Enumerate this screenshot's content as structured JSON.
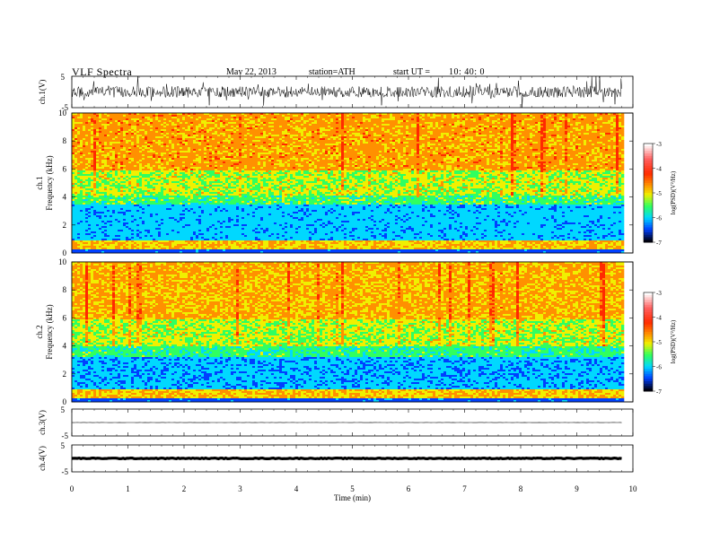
{
  "header": {
    "title": "VLF  Spectra",
    "date": "May 22, 2013",
    "station": "station=ATH",
    "start_label": "start  UT  =",
    "start_time": "10: 40: 0"
  },
  "colorbar": {
    "label": "log(PSD)(V²/Hz)",
    "ticks": [
      "-3",
      "-4",
      "-5",
      "-6",
      "-7"
    ],
    "range": [
      -7,
      -3
    ]
  },
  "colors": {
    "red": "#ff2a00",
    "orange": "#ff9000",
    "yellow": "#f0f000",
    "green": "#30ff60",
    "cyan": "#00d8ff",
    "blue": "#0040ff",
    "trace": "#000000"
  },
  "chart_data": [
    {
      "type": "line",
      "panel": "ch1-waveform",
      "ylabel": "ch.1(V)",
      "yticks": [
        "5",
        "-5"
      ],
      "ylim": [
        -5,
        5
      ],
      "xlim": [
        0,
        10
      ],
      "x_end_min": 9.8,
      "approx_mean_v": 0.0,
      "approx_amplitude_v": 2.5
    },
    {
      "type": "heatmap",
      "panel": "ch1-spectrogram",
      "ylabel_channel": "ch.1",
      "ylabel": "Frequency  (kHz)",
      "yticks": [
        "10",
        "8",
        "6",
        "4",
        "2",
        "0"
      ],
      "ylim": [
        0,
        10
      ],
      "xlim": [
        0,
        10
      ],
      "x_end_min": 9.8,
      "bands": [
        {
          "from_khz": 0.0,
          "to_khz": 0.35,
          "log_psd": -6.5
        },
        {
          "from_khz": 0.35,
          "to_khz": 0.9,
          "log_psd": -4.2
        },
        {
          "from_khz": 0.9,
          "to_khz": 3.5,
          "log_psd": -5.8
        },
        {
          "from_khz": 3.5,
          "to_khz": 4.2,
          "log_psd": -5.0
        },
        {
          "from_khz": 4.2,
          "to_khz": 6.0,
          "log_psd": -4.6
        },
        {
          "from_khz": 6.0,
          "to_khz": 10.0,
          "log_psd": -4.0
        }
      ]
    },
    {
      "type": "heatmap",
      "panel": "ch2-spectrogram",
      "ylabel_channel": "ch.2",
      "ylabel": "Frequency  (kHz)",
      "yticks": [
        "10",
        "8",
        "6",
        "4",
        "2",
        "0"
      ],
      "ylim": [
        0,
        10
      ],
      "xlim": [
        0,
        10
      ],
      "x_end_min": 9.8,
      "bands": [
        {
          "from_khz": 0.0,
          "to_khz": 0.35,
          "log_psd": -6.5
        },
        {
          "from_khz": 0.35,
          "to_khz": 0.9,
          "log_psd": -4.2
        },
        {
          "from_khz": 0.9,
          "to_khz": 3.3,
          "log_psd": -5.9
        },
        {
          "from_khz": 3.3,
          "to_khz": 4.0,
          "log_psd": -5.1
        },
        {
          "from_khz": 4.0,
          "to_khz": 6.0,
          "log_psd": -4.6
        },
        {
          "from_khz": 6.0,
          "to_khz": 10.0,
          "log_psd": -4.1
        }
      ]
    },
    {
      "type": "line",
      "panel": "ch3-waveform",
      "ylabel": "ch.3(V)",
      "yticks": [
        "5",
        "-5"
      ],
      "ylim": [
        -5,
        5
      ],
      "xlim": [
        0,
        10
      ],
      "x_end_min": 9.8,
      "approx_mean_v": 0.0,
      "approx_amplitude_v": 0.1
    },
    {
      "type": "line",
      "panel": "ch4-waveform",
      "ylabel": "ch.4(V)",
      "yticks": [
        "5",
        "-5"
      ],
      "ylim": [
        -5,
        5
      ],
      "xlim": [
        0,
        10
      ],
      "x_end_min": 9.8,
      "approx_mean_v": 0.0,
      "approx_amplitude_v": 0.3
    }
  ],
  "x_axis": {
    "label": "Time  (min)",
    "ticks": [
      "0",
      "1",
      "2",
      "3",
      "4",
      "5",
      "6",
      "7",
      "8",
      "9",
      "10"
    ]
  }
}
